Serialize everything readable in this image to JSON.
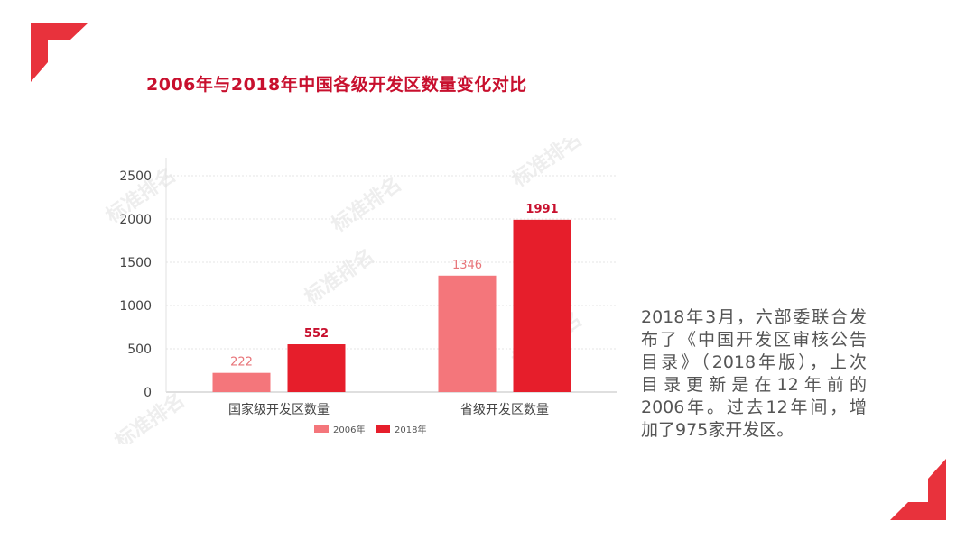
{
  "slide": {
    "title": "2006年与2018年中国各级开发区数量变化对比",
    "accent_color": "#e8323c",
    "side_text_lines": [
      "2018年3月，六部委联合发",
      "布了《中国开发区审核公告",
      "目录》（2018年版），上次",
      "目录更新是在12年前的",
      "2006年。过去12年间，增",
      "加了975家开发区。"
    ],
    "watermark_text": "标准排名",
    "watermark_icon": "logo-watermark-icon"
  },
  "chart_data": {
    "type": "bar",
    "title": "",
    "xlabel": "",
    "ylabel": "",
    "categories": [
      "国家级开发区数量",
      "省级开发区数量"
    ],
    "series": [
      {
        "name": "2006年",
        "values": [
          222,
          1346
        ],
        "color": "#f4767b"
      },
      {
        "name": "2018年",
        "values": [
          552,
          1991
        ],
        "color": "#e61e2b"
      }
    ],
    "ylim": [
      0,
      2500
    ],
    "yticks": [
      0,
      500,
      1000,
      1500,
      2000,
      2500
    ],
    "grid": true,
    "legend_position": "bottom",
    "data_labels": true
  }
}
